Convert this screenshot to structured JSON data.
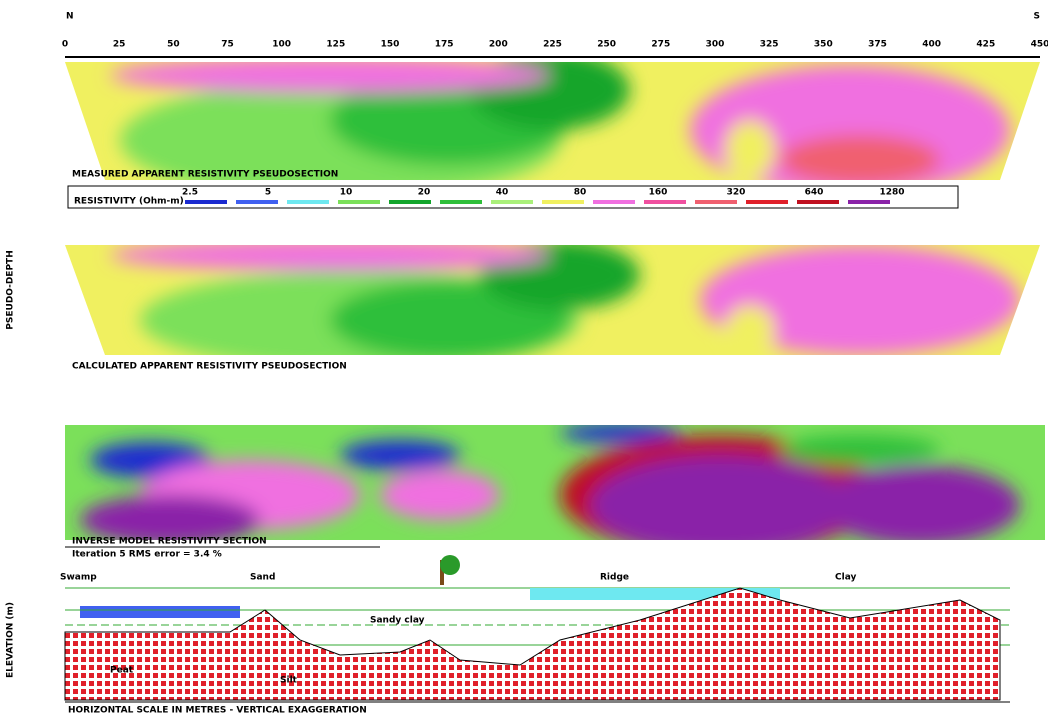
{
  "header": {
    "left": "N",
    "right": "S",
    "distances": [
      "0",
      "25",
      "50",
      "75",
      "100",
      "125",
      "150",
      "175",
      "200",
      "225",
      "250",
      "275",
      "300",
      "325",
      "350",
      "375",
      "400",
      "425",
      "450"
    ]
  },
  "panels": [
    {
      "caption": "MEASURED APPARENT RESISTIVITY PSEUDOSECTION"
    },
    {
      "caption": "CALCULATED APPARENT RESISTIVITY PSEUDOSECTION"
    },
    {
      "caption": "INVERSE MODEL RESISTIVITY SECTION",
      "note": "Iteration 5 RMS error = 3.4 %"
    }
  ],
  "legend": {
    "title": "RESISTIVITY (Ohm-m)",
    "labels": [
      "2.5",
      "5",
      "10",
      "20",
      "40",
      "80",
      "160",
      "320",
      "640",
      "1280"
    ]
  },
  "side_labels": {
    "pseudo_depth": "PSEUDO-DEPTH",
    "elevation": "ELEVATION (m)"
  },
  "geology": {
    "labels": [
      "Swamp",
      "Sand",
      "Ridge",
      "Clay"
    ],
    "units": [
      "Peat",
      "Sandy clay",
      "Silt"
    ],
    "footer": "HORIZONTAL SCALE IN METRES - VERTICAL EXAGGERATION"
  }
}
